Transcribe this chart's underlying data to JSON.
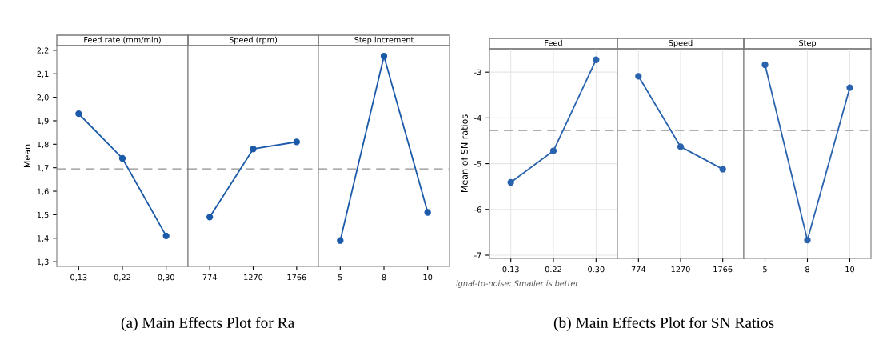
{
  "chart_data": [
    {
      "type": "line",
      "title": "Feed rate (mm/min)",
      "ylabel": "Mean",
      "categories": [
        "0,13",
        "0,22",
        "0,30"
      ],
      "series": [
        {
          "color": "#1a5aa8",
          "values": [
            1.93,
            1.74,
            1.41
          ]
        }
      ],
      "ylim": [
        1.28,
        2.22
      ],
      "yticks": [
        {
          "value": 1.3,
          "label": "1,3"
        },
        {
          "value": 1.4,
          "label": "1,4"
        },
        {
          "value": 1.5,
          "label": "1,5"
        },
        {
          "value": 1.6,
          "label": "1,6"
        },
        {
          "value": 1.7,
          "label": "1,7"
        },
        {
          "value": 1.8,
          "label": "1,8"
        },
        {
          "value": 1.9,
          "label": "1,9"
        },
        {
          "value": 2.0,
          "label": "2,0"
        },
        {
          "value": 2.1,
          "label": "2,1"
        },
        {
          "value": 2.2,
          "label": "2,2"
        }
      ],
      "ref_lines": [
        {
          "axis": "y",
          "value": 1.695,
          "color": "#909090",
          "line_style": "dashed"
        }
      ],
      "marker": "circle",
      "grid": false,
      "legend": false,
      "annotations": [
        "(a) Main Effects Plot for Ra"
      ]
    },
    {
      "type": "line",
      "title": "Speed (rpm)",
      "categories": [
        "774",
        "1270",
        "1766"
      ],
      "series": [
        {
          "color": "#1a5aa8",
          "values": [
            1.49,
            1.78,
            1.81
          ]
        }
      ],
      "ylim": [
        1.28,
        2.22
      ],
      "ref_lines": [
        {
          "axis": "y",
          "value": 1.695,
          "color": "#909090",
          "line_style": "dashed"
        }
      ],
      "marker": "circle",
      "grid": false,
      "legend": false,
      "tick_labels": "x"
    },
    {
      "type": "line",
      "title": "Step increment",
      "categories": [
        "5",
        "8",
        "10"
      ],
      "series": [
        {
          "color": "#1a5aa8",
          "values": [
            1.39,
            2.175,
            1.51
          ]
        }
      ],
      "ylim": [
        1.28,
        2.22
      ],
      "ref_lines": [
        {
          "axis": "y",
          "value": 1.695,
          "color": "#909090",
          "line_style": "dashed"
        }
      ],
      "marker": "circle",
      "grid": false,
      "legend": false,
      "tick_labels": "x"
    },
    {
      "type": "line",
      "title": "Feed",
      "ylabel": "Mean of SN ratios",
      "categories": [
        "0.13",
        "0.22",
        "0.30"
      ],
      "series": [
        {
          "color": "#2a63ad",
          "values": [
            -5.41,
            -4.72,
            -2.73
          ]
        }
      ],
      "ylim": [
        -7.07,
        -2.49
      ],
      "yticks": [
        -7,
        -6,
        -5,
        -4,
        -3
      ],
      "ref_lines": [
        {
          "axis": "y",
          "value": -4.28,
          "color": "#b0b0b0",
          "line_style": "dashed"
        }
      ],
      "marker": "circle",
      "grid": true,
      "legend": false,
      "annotations": [
        "ignal-to-noise: Smaller is better",
        "(b) Main Effects Plot for SN Ratios"
      ]
    },
    {
      "type": "line",
      "title": "Speed",
      "categories": [
        "774",
        "1270",
        "1766"
      ],
      "series": [
        {
          "color": "#2a63ad",
          "values": [
            -3.09,
            -4.63,
            -5.12
          ]
        }
      ],
      "ylim": [
        -7.07,
        -2.49
      ],
      "ref_lines": [
        {
          "axis": "y",
          "value": -4.28,
          "color": "#b0b0b0",
          "line_style": "dashed"
        }
      ],
      "marker": "circle",
      "grid": true,
      "legend": false,
      "tick_labels": "x"
    },
    {
      "type": "line",
      "title": "Step",
      "categories": [
        "5",
        "8",
        "10"
      ],
      "series": [
        {
          "color": "#2a63ad",
          "values": [
            -2.84,
            -6.67,
            -3.34
          ]
        }
      ],
      "ylim": [
        -7.07,
        -2.49
      ],
      "ref_lines": [
        {
          "axis": "y",
          "value": -4.28,
          "color": "#b0b0b0",
          "line_style": "dashed"
        }
      ],
      "marker": "circle",
      "grid": true,
      "legend": false,
      "tick_labels": "x"
    }
  ]
}
